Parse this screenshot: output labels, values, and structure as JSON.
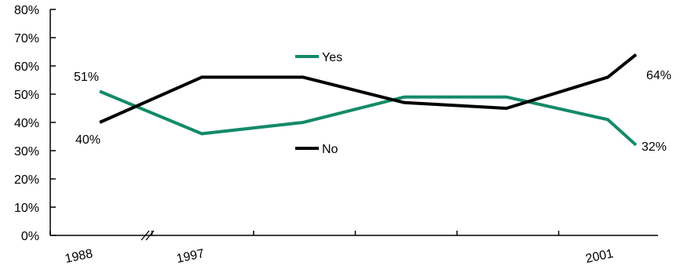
{
  "chart_data": {
    "type": "line",
    "title": "",
    "xlabel": "",
    "ylabel": "",
    "ylim": [
      0,
      80
    ],
    "y_tick_labels": [
      "0%",
      "10%",
      "20%",
      "30%",
      "40%",
      "50%",
      "60%",
      "70%",
      "80%"
    ],
    "x_tick_labels": [
      "1988",
      "1997",
      "2001"
    ],
    "axis_break": "between 1988 and 1997",
    "grid": false,
    "series": [
      {
        "name": "Yes",
        "color": "#138a68",
        "values": [
          51,
          36,
          40,
          49,
          49,
          41,
          32
        ],
        "labels": {
          "start": "51%",
          "end": "32%"
        }
      },
      {
        "name": "No",
        "color": "#000000",
        "values": [
          40,
          56,
          56,
          47,
          45,
          56,
          64
        ],
        "labels": {
          "start": "40%",
          "end": "64%"
        }
      }
    ],
    "legend": "inside, series names next to lines"
  }
}
